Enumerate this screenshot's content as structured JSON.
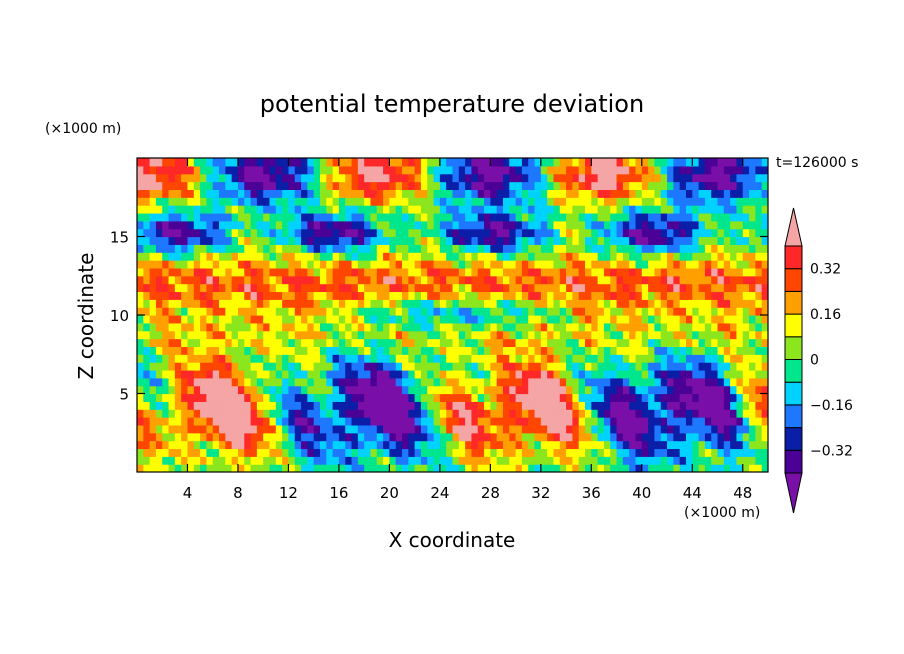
{
  "chart_data": {
    "type": "heatmap",
    "title": "potential temperature deviation",
    "xlabel": "X coordinate",
    "ylabel": "Z coordinate",
    "x_unit": "(×1000 m)",
    "y_unit": "(×1000 m)",
    "time_label": "t=126000 s",
    "xlim": [
      0,
      50
    ],
    "ylim": [
      0,
      20
    ],
    "x_ticks": [
      4,
      8,
      12,
      16,
      20,
      24,
      28,
      32,
      36,
      40,
      44,
      48
    ],
    "y_ticks": [
      5,
      10,
      15
    ],
    "colorbar": {
      "levels": [
        -0.4,
        -0.32,
        -0.24,
        -0.16,
        -0.08,
        0,
        0.08,
        0.16,
        0.24,
        0.32,
        0.4
      ],
      "tick_labels": [
        "0.32",
        "0.16",
        "0",
        "−0.16",
        "−0.32"
      ],
      "tick_values": [
        0.32,
        0.16,
        0,
        -0.16,
        -0.32
      ],
      "colors": [
        "#7a0fa8",
        "#4b0096",
        "#0a1ea8",
        "#1e78ff",
        "#00d2ff",
        "#00e68c",
        "#8ce61e",
        "#ffff00",
        "#ffa000",
        "#ff4600",
        "#ff2828",
        "#f5a5a5"
      ],
      "extend": "both"
    }
  }
}
